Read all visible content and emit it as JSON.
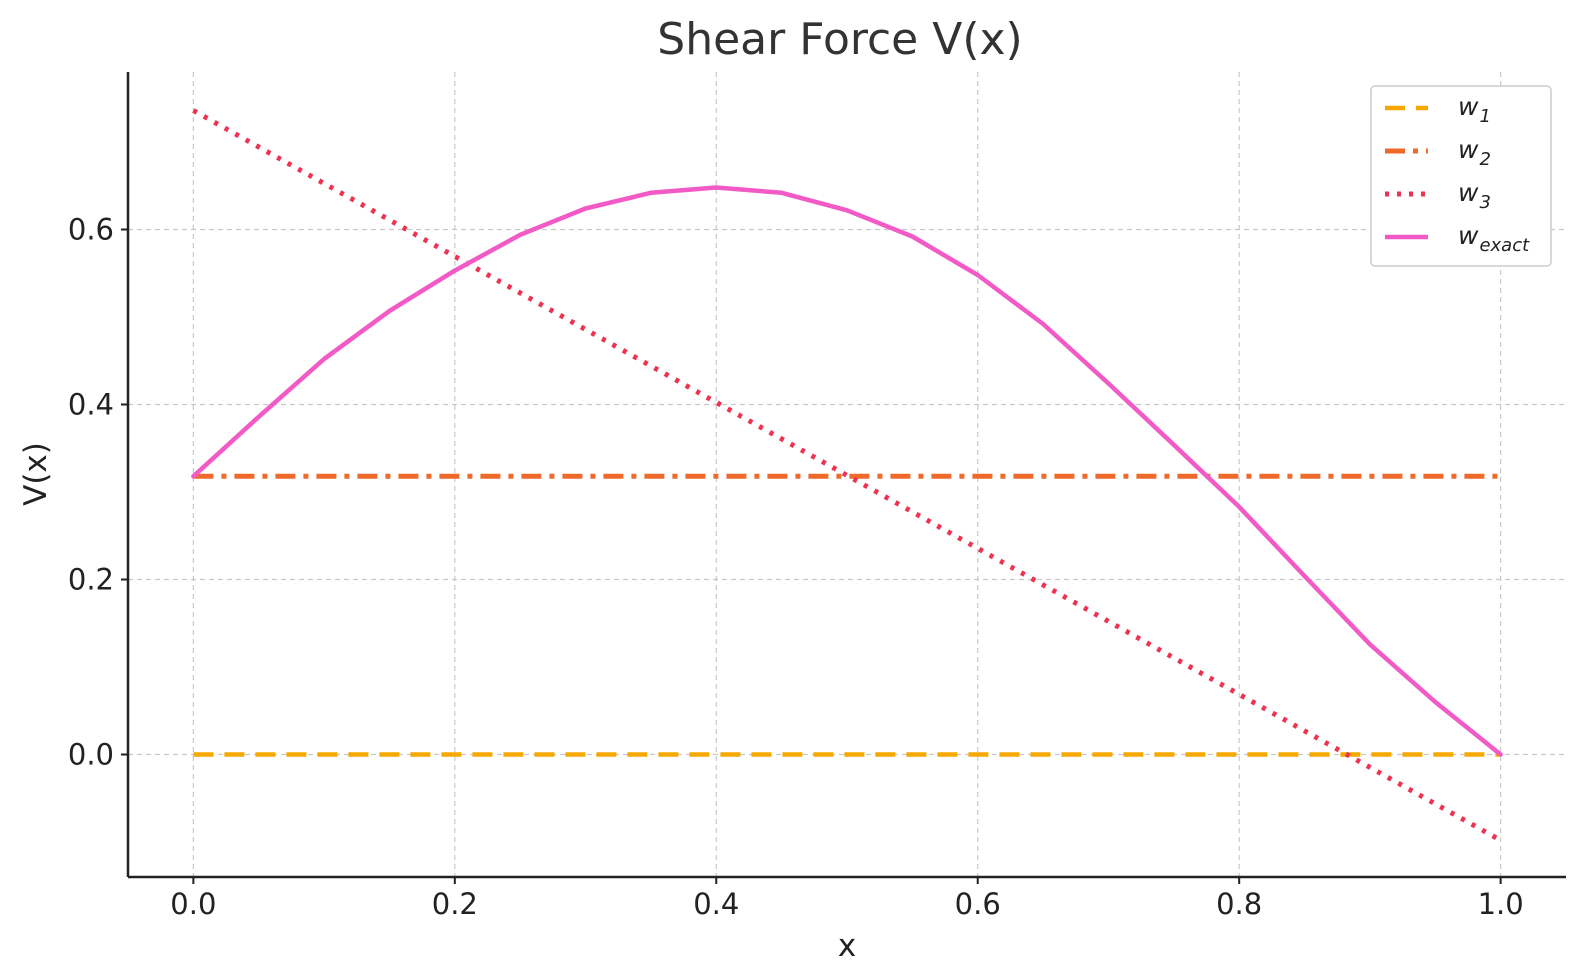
{
  "chart_data": {
    "type": "line",
    "title": "Shear Force V(x)",
    "xlabel": "x",
    "ylabel": "V(x)",
    "xlim": [
      -0.05,
      1.05
    ],
    "ylim": [
      -0.14,
      0.78
    ],
    "xticks": [
      0.0,
      0.2,
      0.4,
      0.6,
      0.8,
      1.0
    ],
    "xtick_labels": [
      "0.0",
      "0.2",
      "0.4",
      "0.6",
      "0.8",
      "1.0"
    ],
    "yticks": [
      0.0,
      0.2,
      0.4,
      0.6
    ],
    "ytick_labels": [
      "0.0",
      "0.2",
      "0.4",
      "0.6"
    ],
    "grid": true,
    "legend_position": "top-right",
    "series": [
      {
        "name": "w1",
        "legend_base": "w",
        "legend_sub": "1",
        "color": "#f5a800",
        "style": "dashed",
        "x": [
          0.0,
          1.0
        ],
        "y": [
          0.0,
          0.0
        ]
      },
      {
        "name": "w2",
        "legend_base": "w",
        "legend_sub": "2",
        "color": "#ef6a2a",
        "style": "dashdot",
        "x": [
          0.0,
          1.0
        ],
        "y": [
          0.318,
          0.318
        ]
      },
      {
        "name": "w3",
        "legend_base": "w",
        "legend_sub": "3",
        "color": "#ee3352",
        "style": "dotted",
        "x": [
          0.0,
          1.0
        ],
        "y": [
          0.736,
          -0.098
        ]
      },
      {
        "name": "wexact",
        "legend_base": "w",
        "legend_sub": "exact",
        "color": "#f25ac6",
        "style": "solid",
        "x": [
          0.0,
          0.05,
          0.1,
          0.15,
          0.2,
          0.25,
          0.3,
          0.35,
          0.4,
          0.45,
          0.5,
          0.55,
          0.6,
          0.65,
          0.7,
          0.75,
          0.8,
          0.85,
          0.9,
          0.95,
          1.0
        ],
        "y": [
          0.318,
          0.386,
          0.452,
          0.507,
          0.553,
          0.594,
          0.624,
          0.642,
          0.648,
          0.642,
          0.622,
          0.592,
          0.548,
          0.492,
          0.424,
          0.354,
          0.283,
          0.204,
          0.126,
          0.06,
          0.0
        ]
      }
    ]
  }
}
